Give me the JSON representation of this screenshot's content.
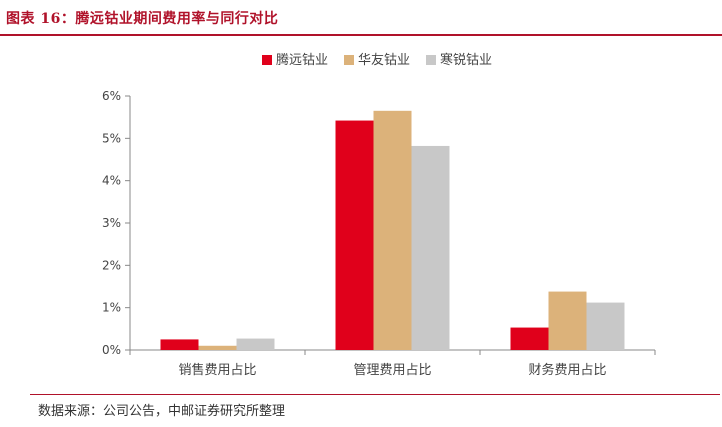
{
  "header": {
    "title": "图表 16：腾远钴业期间费用率与同行对比"
  },
  "source": {
    "text": "数据来源：公司公告，中邮证券研究所整理"
  },
  "chart_data": {
    "type": "bar",
    "categories": [
      "销售费用占比",
      "管理费用占比",
      "财务费用占比"
    ],
    "series": [
      {
        "name": "腾远钴业",
        "color": "#e0001b",
        "values": [
          0.25,
          5.42,
          0.53
        ]
      },
      {
        "name": "华友钴业",
        "color": "#dcb27a",
        "values": [
          0.1,
          5.65,
          1.38
        ]
      },
      {
        "name": "寒锐钴业",
        "color": "#c8c8c8",
        "values": [
          0.27,
          4.82,
          1.12
        ]
      }
    ],
    "y_ticks": [
      "0%",
      "1%",
      "2%",
      "3%",
      "4%",
      "5%",
      "6%"
    ],
    "ylim": [
      0,
      6
    ],
    "legend_position": "top-center",
    "grid": false
  }
}
